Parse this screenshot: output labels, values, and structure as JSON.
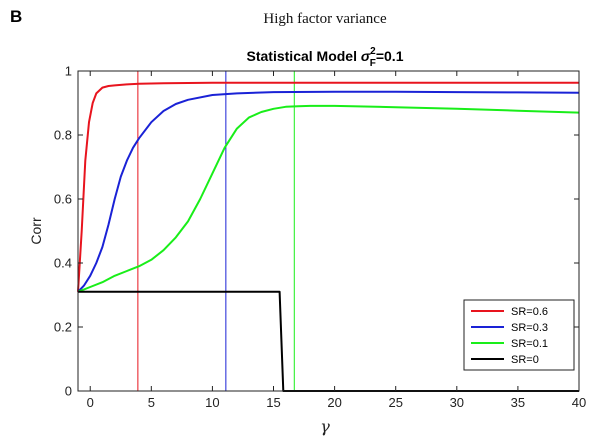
{
  "panel_letter": "B",
  "supertitle": "High factor variance",
  "chart_data": {
    "type": "line",
    "title_prefix": "Statistical Model ",
    "title_symbol": "σ",
    "title_sup": "2",
    "title_sub": "F",
    "title_suffix": "=0.1",
    "xlabel": "γ",
    "ylabel": "Corr",
    "xlim": [
      -1,
      40
    ],
    "ylim": [
      0,
      1
    ],
    "xticks": [
      0,
      5,
      10,
      15,
      20,
      25,
      30,
      35,
      40
    ],
    "yticks": [
      0,
      0.2,
      0.4,
      0.6,
      0.8,
      1
    ],
    "ytick_labels": [
      "0",
      "0.2",
      "0.4",
      "0.6",
      "0.8",
      "1"
    ],
    "grid": false,
    "legend_position": "lower-right",
    "series": [
      {
        "name": "SR=0.6",
        "color": "#e8141e",
        "x": [
          -1,
          -0.7,
          -0.4,
          -0.1,
          0.2,
          0.5,
          1,
          1.5,
          2,
          3,
          4,
          6,
          10,
          15,
          20,
          30,
          40
        ],
        "y": [
          0.31,
          0.5,
          0.72,
          0.84,
          0.9,
          0.93,
          0.948,
          0.953,
          0.955,
          0.958,
          0.96,
          0.962,
          0.963,
          0.963,
          0.963,
          0.963,
          0.963
        ]
      },
      {
        "name": "SR=0.3",
        "color": "#1a22d6",
        "x": [
          -1,
          -0.5,
          0,
          0.5,
          1,
          1.5,
          2,
          2.5,
          3,
          3.5,
          4,
          5,
          6,
          7,
          8,
          10,
          12,
          15,
          20,
          25,
          30,
          35,
          40
        ],
        "y": [
          0.31,
          0.33,
          0.36,
          0.4,
          0.45,
          0.52,
          0.6,
          0.67,
          0.72,
          0.76,
          0.79,
          0.84,
          0.875,
          0.897,
          0.91,
          0.925,
          0.93,
          0.934,
          0.935,
          0.935,
          0.934,
          0.933,
          0.932
        ]
      },
      {
        "name": "SR=0.1",
        "color": "#19ee19",
        "x": [
          -1,
          0,
          1,
          2,
          3,
          4,
          5,
          6,
          7,
          8,
          9,
          10,
          11,
          12,
          13,
          14,
          15,
          16,
          17,
          18,
          20,
          25,
          30,
          35,
          40
        ],
        "y": [
          0.31,
          0.325,
          0.34,
          0.36,
          0.375,
          0.39,
          0.41,
          0.44,
          0.48,
          0.53,
          0.6,
          0.68,
          0.76,
          0.82,
          0.855,
          0.872,
          0.882,
          0.888,
          0.89,
          0.891,
          0.891,
          0.887,
          0.882,
          0.876,
          0.87
        ]
      },
      {
        "name": "SR=0",
        "color": "#000000",
        "x": [
          -1,
          15.5,
          15.8,
          16,
          40
        ],
        "y": [
          0.31,
          0.31,
          0,
          0,
          0
        ]
      }
    ],
    "vertical_lines": [
      {
        "x": 3.9,
        "color": "#e8141e"
      },
      {
        "x": 11.1,
        "color": "#1a22d6"
      },
      {
        "x": 16.7,
        "color": "#19ee19"
      }
    ]
  }
}
